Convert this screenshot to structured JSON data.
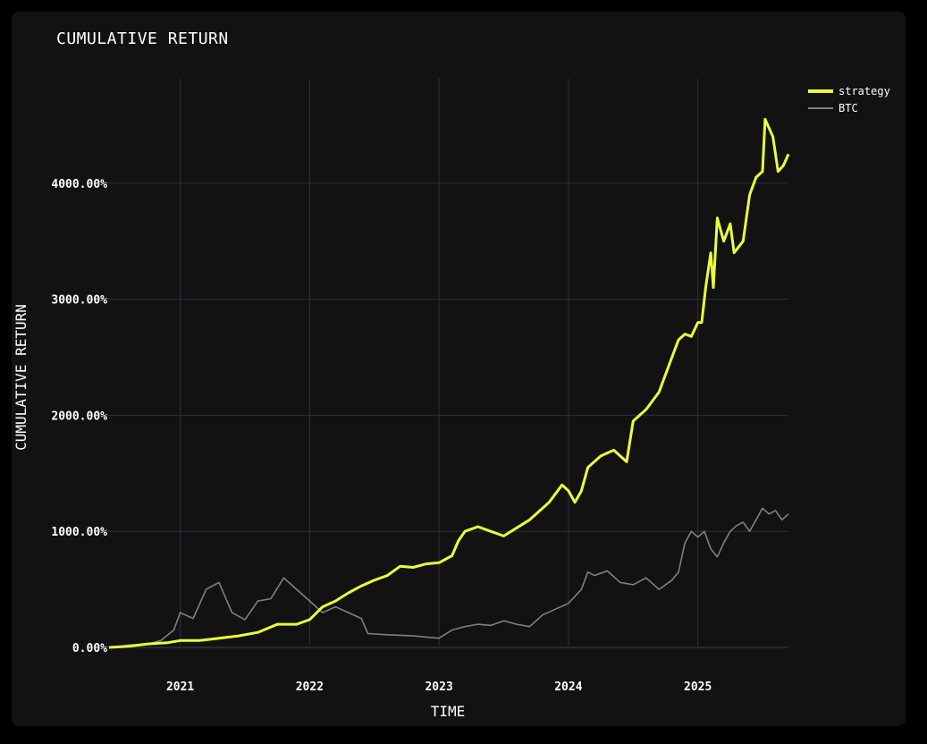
{
  "chart_data": {
    "type": "line",
    "title": "CUMULATIVE RETURN",
    "xlabel": "TIME",
    "ylabel": "CUMULATIVE RETURN",
    "xlim": [
      2020.45,
      2025.7
    ],
    "ylim": [
      -200,
      4900
    ],
    "x_ticks": [
      2021,
      2022,
      2023,
      2024,
      2025
    ],
    "x_tick_labels": [
      "2021",
      "2022",
      "2023",
      "2024",
      "2025"
    ],
    "y_ticks": [
      0,
      1000,
      2000,
      3000,
      4000
    ],
    "y_tick_labels": [
      "0.00%",
      "1000.00%",
      "2000.00%",
      "3000.00%",
      "4000.00%"
    ],
    "grid": true,
    "legend_position": "top-right",
    "series": [
      {
        "name": "strategy",
        "color": "#eaff3a",
        "x": [
          2020.45,
          2020.6,
          2020.75,
          2020.9,
          2021.0,
          2021.15,
          2021.3,
          2021.45,
          2021.6,
          2021.75,
          2021.9,
          2022.0,
          2022.1,
          2022.2,
          2022.3,
          2022.4,
          2022.5,
          2022.6,
          2022.7,
          2022.8,
          2022.9,
          2023.0,
          2023.1,
          2023.15,
          2023.2,
          2023.3,
          2023.4,
          2023.5,
          2023.6,
          2023.7,
          2023.8,
          2023.85,
          2023.95,
          2024.0,
          2024.05,
          2024.1,
          2024.15,
          2024.25,
          2024.35,
          2024.45,
          2024.5,
          2024.6,
          2024.7,
          2024.8,
          2024.85,
          2024.9,
          2024.95,
          2025.0,
          2025.03,
          2025.06,
          2025.1,
          2025.12,
          2025.15,
          2025.2,
          2025.25,
          2025.28,
          2025.35,
          2025.4,
          2025.45,
          2025.5,
          2025.52,
          2025.58,
          2025.62,
          2025.66,
          2025.7
        ],
        "values": [
          0,
          10,
          30,
          40,
          60,
          60,
          80,
          100,
          130,
          200,
          200,
          240,
          350,
          400,
          470,
          530,
          580,
          620,
          700,
          690,
          720,
          730,
          790,
          920,
          1000,
          1040,
          1000,
          960,
          1030,
          1100,
          1200,
          1250,
          1400,
          1350,
          1250,
          1350,
          1550,
          1650,
          1700,
          1600,
          1950,
          2050,
          2200,
          2500,
          2650,
          2700,
          2680,
          2800,
          2800,
          3100,
          3400,
          3100,
          3700,
          3500,
          3650,
          3400,
          3500,
          3900,
          4050,
          4100,
          4550,
          4400,
          4100,
          4150,
          4250
        ]
      },
      {
        "name": "BTC",
        "color": "#808080",
        "x": [
          2020.45,
          2020.6,
          2020.75,
          2020.85,
          2020.95,
          2021.0,
          2021.1,
          2021.2,
          2021.3,
          2021.4,
          2021.5,
          2021.6,
          2021.7,
          2021.8,
          2021.9,
          2022.0,
          2022.1,
          2022.2,
          2022.3,
          2022.4,
          2022.45,
          2022.6,
          2022.8,
          2023.0,
          2023.1,
          2023.2,
          2023.3,
          2023.4,
          2023.5,
          2023.6,
          2023.7,
          2023.8,
          2023.9,
          2024.0,
          2024.1,
          2024.15,
          2024.2,
          2024.3,
          2024.4,
          2024.5,
          2024.6,
          2024.7,
          2024.8,
          2024.85,
          2024.9,
          2024.95,
          2025.0,
          2025.05,
          2025.1,
          2025.15,
          2025.2,
          2025.25,
          2025.3,
          2025.35,
          2025.4,
          2025.45,
          2025.5,
          2025.55,
          2025.6,
          2025.65,
          2025.7
        ],
        "values": [
          0,
          20,
          30,
          60,
          150,
          300,
          250,
          500,
          560,
          300,
          240,
          400,
          420,
          600,
          500,
          400,
          300,
          350,
          300,
          250,
          120,
          110,
          100,
          80,
          150,
          180,
          200,
          190,
          230,
          200,
          180,
          280,
          330,
          380,
          500,
          650,
          620,
          660,
          560,
          540,
          600,
          500,
          580,
          650,
          900,
          1000,
          950,
          1000,
          850,
          780,
          900,
          1000,
          1050,
          1080,
          1000,
          1100,
          1200,
          1150,
          1180,
          1100,
          1150
        ]
      }
    ]
  }
}
